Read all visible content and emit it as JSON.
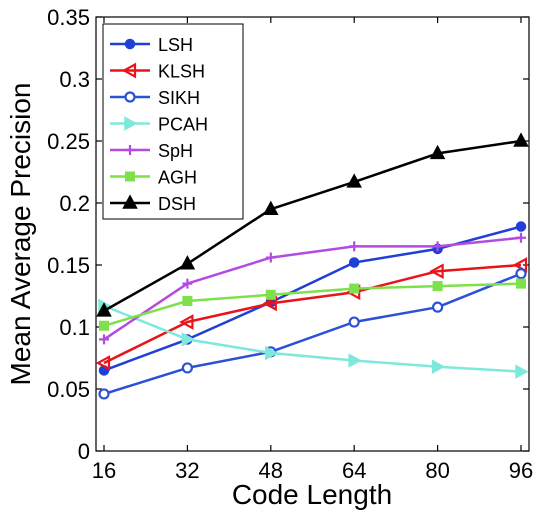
{
  "chart_data": {
    "type": "line",
    "xlabel": "Code Length",
    "ylabel": "Mean Average Precision",
    "x": [
      16,
      32,
      48,
      64,
      80,
      96
    ],
    "xlim": [
      16,
      96
    ],
    "ylim": [
      0,
      0.35
    ],
    "xticks": [
      "16",
      "32",
      "48",
      "64",
      "80",
      "96"
    ],
    "yticks": [
      "0",
      "0.05",
      "0.1",
      "0.15",
      "0.2",
      "0.25",
      "0.3",
      "0.35"
    ],
    "grid": false,
    "legend_position": "top-left",
    "series": [
      {
        "name": "LSH",
        "color": "#1f3fd6",
        "marker": "filled-circle",
        "values": [
          0.065,
          0.09,
          0.12,
          0.152,
          0.163,
          0.181
        ]
      },
      {
        "name": "KLSH",
        "color": "#e8141a",
        "marker": "left-triangle",
        "values": [
          0.071,
          0.104,
          0.119,
          0.128,
          0.145,
          0.15
        ]
      },
      {
        "name": "SIKH",
        "color": "#2a52d6",
        "marker": "open-circle",
        "values": [
          0.046,
          0.067,
          0.08,
          0.104,
          0.116,
          0.143
        ]
      },
      {
        "name": "PCAH",
        "color": "#7fe8dc",
        "marker": "right-triangle",
        "values": [
          0.117,
          0.09,
          0.079,
          0.073,
          0.068,
          0.064
        ]
      },
      {
        "name": "SpH",
        "color": "#b44be0",
        "marker": "plus",
        "values": [
          0.09,
          0.135,
          0.156,
          0.165,
          0.165,
          0.172
        ]
      },
      {
        "name": "AGH",
        "color": "#7ee04a",
        "marker": "square",
        "values": [
          0.101,
          0.121,
          0.126,
          0.131,
          0.133,
          0.135
        ]
      },
      {
        "name": "DSH",
        "color": "#000000",
        "marker": "triangle",
        "values": [
          0.113,
          0.151,
          0.195,
          0.217,
          0.24,
          0.25
        ]
      }
    ]
  }
}
